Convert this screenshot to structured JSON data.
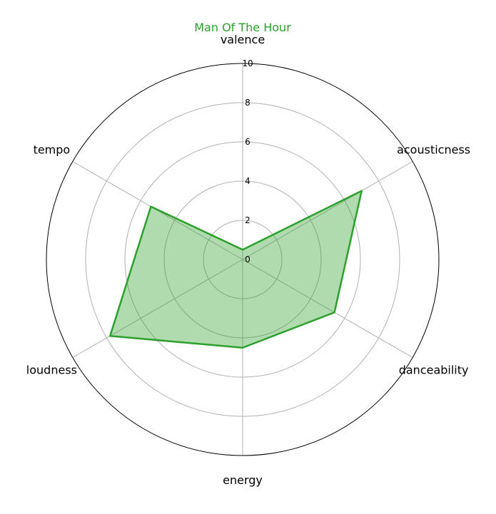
{
  "chart_data": {
    "type": "radar",
    "title": "Man Of The Hour",
    "axes": [
      "valence",
      "acousticness",
      "danceability",
      "energy",
      "loudness",
      "tempo"
    ],
    "rlim": [
      0,
      10
    ],
    "rticks": [
      "0",
      "2",
      "4",
      "6",
      "8",
      "10"
    ],
    "series": [
      {
        "values": [
          0.5,
          7.0,
          5.4,
          4.5,
          7.8,
          5.4
        ]
      }
    ],
    "grid": true,
    "colors": {
      "line": "#2ca02c",
      "fill": "#2ca02c",
      "grid": "#b0b0b0",
      "outer": "#000000"
    }
  }
}
